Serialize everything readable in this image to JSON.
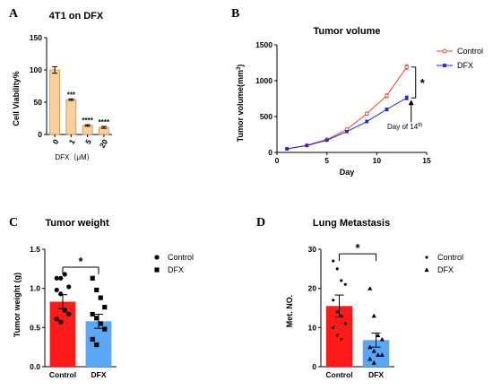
{
  "panels": [
    {
      "letter": "A"
    },
    {
      "letter": "B"
    },
    {
      "letter": "C"
    },
    {
      "letter": "D"
    }
  ],
  "colors": {
    "control_bar": "#ff1a1a",
    "dfx_bar": "#5aa7f5",
    "cell_bar": "#f9cf9e",
    "cell_bar_edge": "#c98a4a",
    "control_line": "#e8463e",
    "dfx_line": "#1f2bd6"
  },
  "chart_data": [
    {
      "id": "A",
      "type": "bar",
      "title": "4T1 on DFX",
      "xlabel": "DFX（μM）",
      "ylabel": "Cell Viability%",
      "categories": [
        "0",
        "1",
        "5",
        "20"
      ],
      "values": [
        100,
        54,
        14,
        11
      ],
      "errors": [
        5,
        1.2,
        1.2,
        1.5
      ],
      "significance": [
        "",
        "***",
        "****",
        "****"
      ],
      "ylim": [
        0,
        150
      ],
      "yticks": [
        "0",
        "50",
        "100",
        "150"
      ]
    },
    {
      "id": "B",
      "type": "line",
      "title": "Tumor volume",
      "xlabel": "Day",
      "ylabel": "Tumor volume(mm",
      "ylabel_sup": "3",
      "ylabel_end": ")",
      "xlim": [
        0,
        15
      ],
      "ylim": [
        0,
        1500
      ],
      "xticks": [
        "0",
        "5",
        "10",
        "15"
      ],
      "yticks": [
        "0",
        "500",
        "1000",
        "1500"
      ],
      "series": [
        {
          "name": "Control",
          "x": [
            1,
            3,
            5,
            7,
            9,
            11,
            13
          ],
          "values": [
            50,
            100,
            180,
            320,
            540,
            790,
            1190
          ],
          "errors": [
            5,
            8,
            10,
            15,
            20,
            25,
            30
          ]
        },
        {
          "name": "DFX",
          "x": [
            1,
            3,
            5,
            7,
            9,
            11,
            13
          ],
          "values": [
            50,
            95,
            170,
            290,
            430,
            600,
            760
          ],
          "errors": [
            5,
            8,
            10,
            15,
            18,
            20,
            25
          ]
        }
      ],
      "significance": "*",
      "annotation": "Day of 14",
      "annotation_sup": "th"
    },
    {
      "id": "C",
      "type": "bar",
      "title": "Tumor weight",
      "ylabel": "Tumor weight (g)",
      "categories": [
        "Control",
        "DFX"
      ],
      "values": [
        0.83,
        0.58
      ],
      "errors": [
        0.09,
        0.09
      ],
      "points": [
        [
          1.13,
          1.13,
          1.18,
          1.02,
          0.98,
          0.93,
          0.72,
          0.67,
          0.61,
          0.57
        ],
        [
          1.13,
          0.98,
          0.88,
          0.76,
          0.67,
          0.62,
          0.55,
          0.48,
          0.35,
          0.28
        ]
      ],
      "ylim": [
        0,
        1.5
      ],
      "yticks": [
        "0.0",
        "0.5",
        "1.0",
        "1.5"
      ],
      "significance": "*",
      "legend": [
        {
          "marker": "circle",
          "label": "Control"
        },
        {
          "marker": "square",
          "label": "DFX"
        }
      ]
    },
    {
      "id": "D",
      "type": "bar",
      "title": "Lung Metastasis",
      "ylabel": "Met. NO.",
      "categories": [
        "Control",
        "DFX"
      ],
      "values": [
        15.5,
        6.8
      ],
      "errors": [
        2.8,
        1.8
      ],
      "points": [
        [
          27,
          25,
          22,
          21,
          17,
          14,
          13,
          11,
          10,
          8,
          7
        ],
        [
          20,
          13,
          8,
          7,
          5,
          4,
          3,
          3,
          2,
          1
        ]
      ],
      "ylim": [
        0,
        30
      ],
      "yticks": [
        "0",
        "10",
        "20",
        "30"
      ],
      "significance": "*",
      "legend": [
        {
          "marker": "dot",
          "label": "Control"
        },
        {
          "marker": "triangle",
          "label": "DFX"
        }
      ]
    }
  ]
}
